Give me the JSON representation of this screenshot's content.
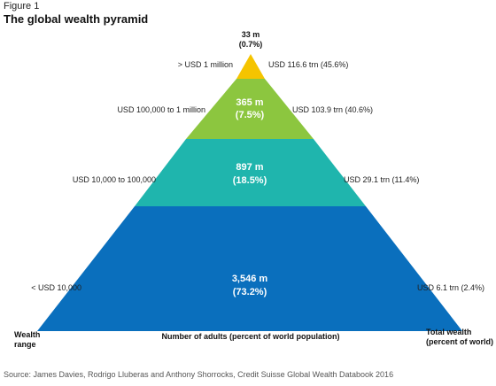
{
  "figure_label": "Figure 1",
  "title": "The global wealth pyramid",
  "top_label": {
    "line1": "33 m",
    "line2": "(0.7%)"
  },
  "tiers": [
    {
      "wealth_range": "> USD 1 million",
      "adults": "33 m",
      "adults_pct": "(0.7%)",
      "adults_value_m": 33,
      "adults_share_pct": 0.7,
      "total_wealth": "USD 116.6 trn (45.6%)",
      "color": "#f5c400"
    },
    {
      "wealth_range": "USD 100,000 to 1 million",
      "adults": "365 m",
      "adults_pct": "(7.5%)",
      "adults_value_m": 365,
      "adults_share_pct": 7.5,
      "total_wealth": "USD 103.9 trn (40.6%)",
      "color": "#8cc63f"
    },
    {
      "wealth_range": "USD 10,000 to 100,000",
      "adults": "897 m",
      "adults_pct": "(18.5%)",
      "adults_value_m": 897,
      "adults_share_pct": 18.5,
      "total_wealth": "USD 29.1 trn (11.4%)",
      "color": "#1fb5ad"
    },
    {
      "wealth_range": "< USD 10,000",
      "adults": "3,546 m",
      "adults_pct": "(73.2%)",
      "adults_value_m": 3546,
      "adults_share_pct": 73.2,
      "total_wealth": "USD 6.1 trn (2.4%)",
      "color": "#0a6fbd"
    }
  ],
  "axis_labels": {
    "wealth_range_line1": "Wealth",
    "wealth_range_line2": "range",
    "adults": "Number of adults (percent of world population)",
    "total_wealth_line1": "Total wealth",
    "total_wealth_line2": "(percent of world)"
  },
  "source": "Source: James Davies, Rodrigo Lluberas and Anthony Shorrocks, Credit Suisse Global Wealth Databook 2016"
}
